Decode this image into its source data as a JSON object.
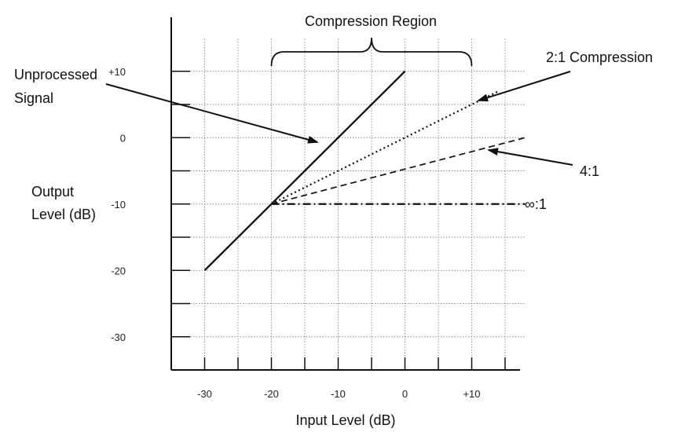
{
  "chart_data": {
    "type": "line",
    "title": "",
    "xlabel": "Input Level (dB)",
    "ylabel_lines": [
      "Output",
      "Level (dB)"
    ],
    "xlim": [
      -35,
      18
    ],
    "ylim": [
      -35,
      20
    ],
    "x_tick_labels": [
      "-30",
      "-20",
      "-10",
      "0",
      "+10"
    ],
    "x_tick_values": [
      -30,
      -20,
      -10,
      0,
      10
    ],
    "y_tick_labels": [
      "+10",
      "0",
      "-10",
      "-20",
      "-30"
    ],
    "y_tick_values": [
      10,
      0,
      -10,
      -20,
      -30
    ],
    "grid": true,
    "threshold": -20,
    "region_label": "Compression Region",
    "region_range": [
      -20,
      10
    ],
    "series": [
      {
        "name": "Unprocessed Signal",
        "style": "solid",
        "points": [
          [
            -30,
            -20
          ],
          [
            0,
            10
          ]
        ]
      },
      {
        "name": "2:1 Compression",
        "style": "dotted",
        "points": [
          [
            -20,
            -10
          ],
          [
            14,
            7
          ]
        ]
      },
      {
        "name": "4:1",
        "style": "dashed",
        "points": [
          [
            -20,
            -10
          ],
          [
            18,
            0
          ]
        ]
      },
      {
        "name": "∞:1",
        "style": "dashdot",
        "points": [
          [
            -20,
            -10
          ],
          [
            18,
            -10
          ]
        ]
      }
    ],
    "annotations": [
      {
        "lines": [
          "Unprocessed",
          "Signal"
        ],
        "series": "Unprocessed Signal"
      },
      {
        "lines": [
          "2:1 Compression"
        ],
        "series": "2:1 Compression"
      },
      {
        "lines": [
          "4:1"
        ],
        "series": "4:1"
      },
      {
        "lines": [
          "∞:1"
        ],
        "series": "∞:1"
      }
    ]
  }
}
